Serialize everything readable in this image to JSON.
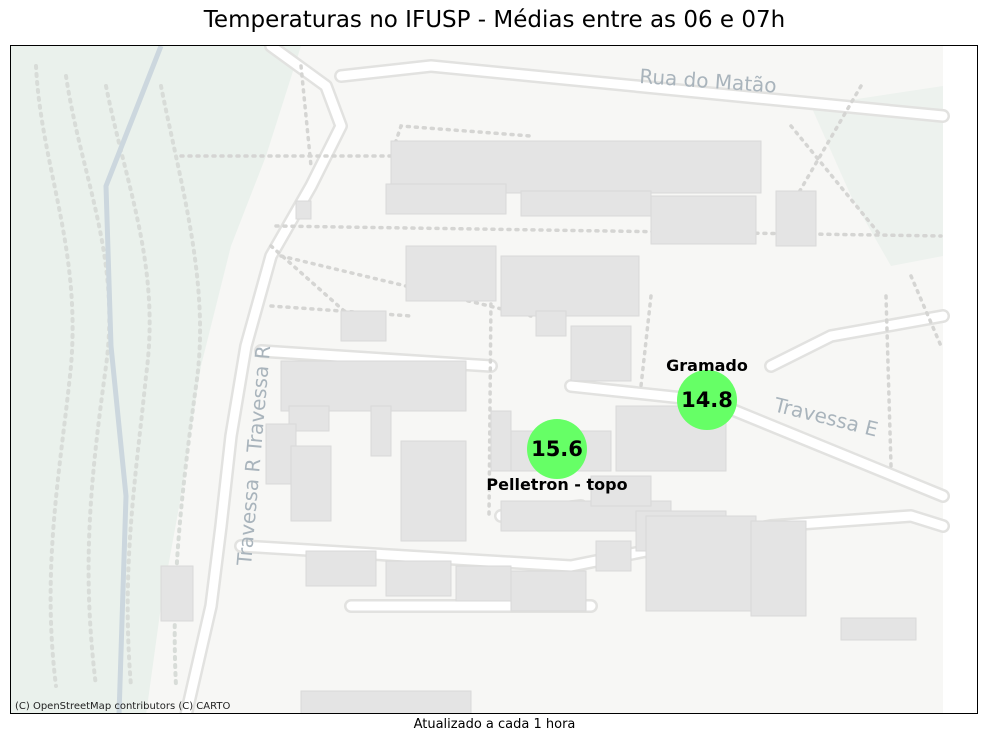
{
  "title": "Temperaturas no IFUSP - Médias entre as 06 e 07h",
  "footer": "Atualizado a cada 1 hora",
  "attribution": "(C) OpenStreetMap contributors (C) CARTO",
  "streets": {
    "rua_do_matao": "Rua do Matão",
    "travessa_e": "Travessa E",
    "travessa_r": "Travessa R Travessa R"
  },
  "stations": [
    {
      "name": "Gramado",
      "value": "14.8",
      "color": "#66ff66"
    },
    {
      "name": "Pelletron - topo",
      "value": "15.6",
      "color": "#66ff66"
    }
  ],
  "colors": {
    "map_bg": "#f7f7f5",
    "green_area": "#eaf1ec",
    "building": "#e4e4e4",
    "road": "#ffffff",
    "path_dots": "#d5d5d3"
  }
}
